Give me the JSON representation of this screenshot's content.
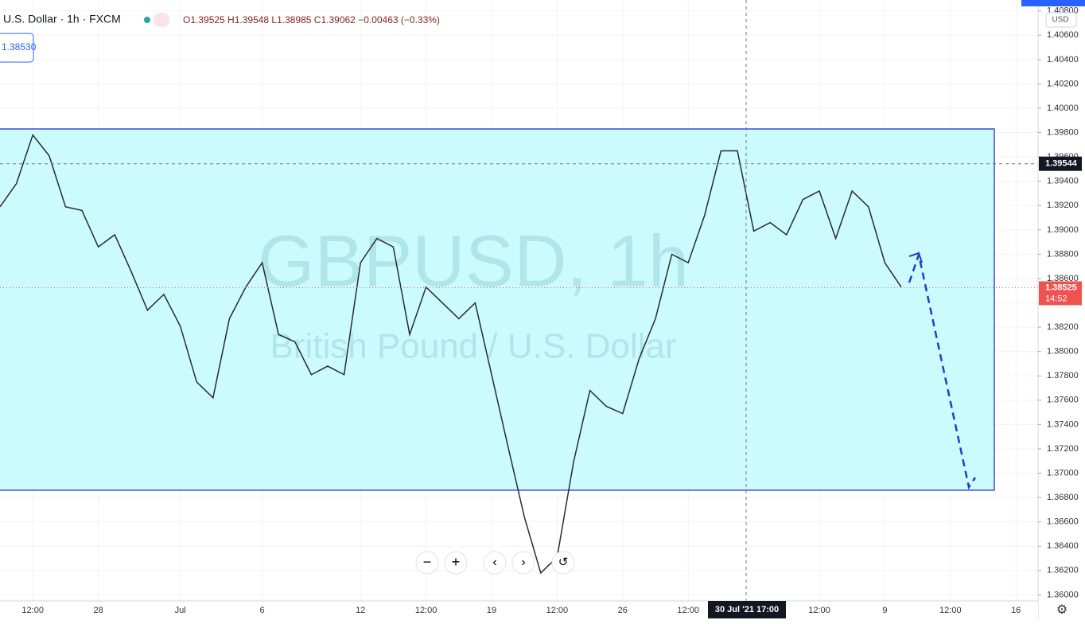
{
  "ui": {
    "symbol": "U.S. Dollar · 1h · FXCM",
    "ohlc": "O1.39525 H1.39548 L1.38985 C1.39062 −0.00463 (−0.33%)",
    "input_price": "1.38530",
    "currency": "USD",
    "countdown": "14:52",
    "crosshair_time": "30 Jul '21   17:00",
    "watermark_symbol": "GBPUSD, 1h",
    "watermark_name": "British Pound / U.S. Dollar"
  },
  "chart_data": {
    "type": "line",
    "categories": [
      null,
      null,
      "12:00",
      null,
      null,
      null,
      "28",
      null,
      null,
      null,
      null,
      "Jul",
      null,
      null,
      null,
      null,
      "6",
      null,
      null,
      null,
      null,
      null,
      "12",
      null,
      null,
      null,
      "12:00",
      null,
      null,
      null,
      "19",
      null,
      null,
      null,
      "12:00",
      null,
      null,
      null,
      "26",
      null,
      null,
      null,
      "12:00",
      null,
      null,
      null,
      null,
      null,
      null,
      null,
      "12:00",
      null,
      null,
      null,
      "9",
      null,
      null,
      null,
      "12:00",
      null,
      null,
      null,
      "16"
    ],
    "series": [
      {
        "name": "GBPUSD",
        "color": "#2b2b2b",
        "values": [
          1.3919,
          1.3938,
          1.3978,
          1.3961,
          1.3919,
          1.3916,
          1.3886,
          1.3896,
          1.3866,
          1.3834,
          1.3847,
          1.3821,
          1.3775,
          1.3762,
          1.3827,
          1.3853,
          1.3873,
          1.3814,
          1.3808,
          1.3781,
          1.3788,
          1.3781,
          1.3873,
          1.3893,
          1.3886,
          1.3814,
          1.3853,
          1.384,
          1.3827,
          1.384,
          1.3781,
          1.3722,
          1.3664,
          1.3618,
          1.3631,
          1.3709,
          1.3768,
          1.3755,
          1.3749,
          1.3794,
          1.3827,
          1.388,
          1.3873,
          1.3912,
          1.3965,
          1.3965,
          1.3899,
          1.3906,
          1.3896,
          1.3925,
          1.3932,
          1.3893,
          1.3932,
          1.3919,
          1.3873,
          1.3853,
          null,
          null,
          null,
          null,
          null,
          null,
          null
        ]
      }
    ],
    "ylim": [
      1.3595,
      1.4089
    ],
    "yticks": [
      {
        "value": 1.36,
        "label": "1.36000"
      },
      {
        "value": 1.362,
        "label": "1.36200"
      },
      {
        "value": 1.364,
        "label": "1.36400"
      },
      {
        "value": 1.366,
        "label": "1.36600"
      },
      {
        "value": 1.368,
        "label": "1.36800"
      },
      {
        "value": 1.37,
        "label": "1.37000"
      },
      {
        "value": 1.372,
        "label": "1.37200"
      },
      {
        "value": 1.374,
        "label": "1.37400"
      },
      {
        "value": 1.376,
        "label": "1.37600"
      },
      {
        "value": 1.378,
        "label": "1.37800"
      },
      {
        "value": 1.38,
        "label": "1.38000"
      },
      {
        "value": 1.382,
        "label": "1.38200"
      },
      {
        "value": 1.384,
        "label": "1.38400"
      },
      {
        "value": 1.386,
        "label": "1.38600"
      },
      {
        "value": 1.388,
        "label": "1.38800"
      },
      {
        "value": 1.39,
        "label": "1.39000"
      },
      {
        "value": 1.392,
        "label": "1.39200"
      },
      {
        "value": 1.394,
        "label": "1.39400"
      },
      {
        "value": 1.396,
        "label": "1.39600"
      },
      {
        "value": 1.398,
        "label": "1.39800"
      },
      {
        "value": 1.4,
        "label": "1.40000"
      },
      {
        "value": 1.402,
        "label": "1.40200"
      },
      {
        "value": 1.404,
        "label": "1.40400"
      },
      {
        "value": 1.406,
        "label": "1.40600"
      },
      {
        "value": 1.408,
        "label": "1.40800"
      }
    ],
    "grid": true,
    "zone": [
      1.3686,
      1.3983
    ],
    "zone_color": "#cbfbff",
    "last_price": 1.38525,
    "crosshair_price": 1.39544
  }
}
